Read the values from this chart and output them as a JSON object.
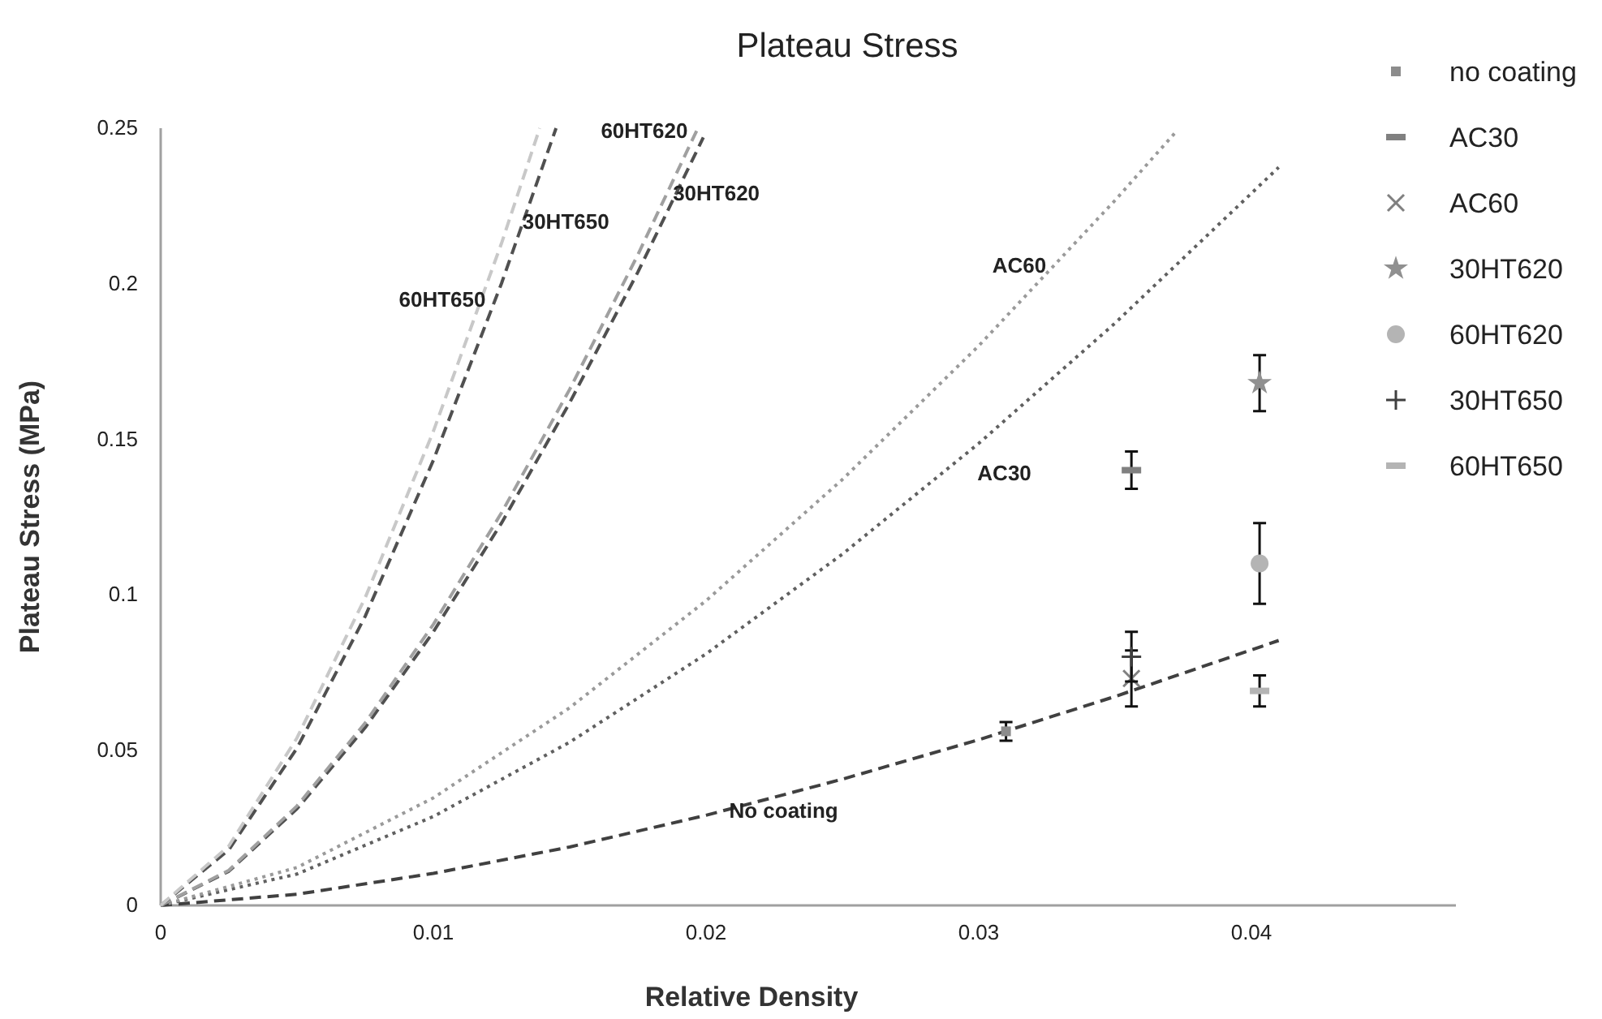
{
  "chart_data": {
    "type": "line",
    "title": "Plateau Stress",
    "xlabel": "Relative Density",
    "ylabel": "Plateau Stress (MPa)",
    "xlim": [
      0,
      0.0475
    ],
    "xticks": [
      0,
      0.01,
      0.02,
      0.03,
      0.04
    ],
    "ylim": [
      0,
      0.25
    ],
    "yticks": [
      0,
      0.05,
      0.1,
      0.15,
      0.2,
      0.25
    ],
    "grid": false,
    "legend": "top right",
    "series": [
      {
        "type": "line",
        "name": "No coating",
        "line_style": "dashed",
        "color": "#404040",
        "x": [
          0,
          0.005,
          0.01,
          0.015,
          0.02,
          0.025,
          0.03,
          0.035,
          0.041
        ],
        "values": [
          0,
          0.0036,
          0.0103,
          0.0188,
          0.029,
          0.0406,
          0.0533,
          0.0672,
          0.0852
        ]
      },
      {
        "type": "line",
        "name": "AC30",
        "line_style": "dotted",
        "color": "#606060",
        "x": [
          0,
          0.005,
          0.01,
          0.015,
          0.02,
          0.025,
          0.03,
          0.035,
          0.041
        ],
        "values": [
          0,
          0.0101,
          0.0286,
          0.0525,
          0.0809,
          0.113,
          0.1486,
          0.1873,
          0.2374
        ]
      },
      {
        "type": "line",
        "name": "AC60",
        "line_style": "dotted",
        "color": "#9a9a9a",
        "x": [
          0,
          0.005,
          0.01,
          0.015,
          0.02,
          0.025,
          0.03,
          0.035,
          0.0372
        ],
        "values": [
          0,
          0.0122,
          0.0346,
          0.0636,
          0.098,
          0.137,
          0.18,
          0.2268,
          0.2485
        ]
      },
      {
        "type": "line",
        "name": "30HT620",
        "line_style": "dashed",
        "color": "#505050",
        "x": [
          0,
          0.0025,
          0.005,
          0.0075,
          0.01,
          0.0125,
          0.015,
          0.0175,
          0.0199
        ],
        "values": [
          0,
          0.011,
          0.0311,
          0.0572,
          0.088,
          0.123,
          0.1617,
          0.2037,
          0.247
        ]
      },
      {
        "type": "line",
        "name": "60HT620",
        "line_style": "dashed",
        "color": "#a0a0a0",
        "x": [
          0,
          0.0025,
          0.005,
          0.0075,
          0.01,
          0.0125,
          0.015,
          0.0175,
          0.0197
        ],
        "values": [
          0,
          0.0113,
          0.032,
          0.0587,
          0.0904,
          0.1263,
          0.166,
          0.2093,
          0.25
        ]
      },
      {
        "type": "line",
        "name": "30HT650",
        "line_style": "dashed",
        "color": "#505050",
        "x": [
          0,
          0.0025,
          0.005,
          0.0075,
          0.01,
          0.0125,
          0.0145
        ],
        "values": [
          0,
          0.0179,
          0.0506,
          0.093,
          0.1432,
          0.2001,
          0.25
        ]
      },
      {
        "type": "line",
        "name": "60HT650",
        "line_style": "dashed",
        "color": "#c8c8c8",
        "x": [
          0,
          0.0025,
          0.005,
          0.0075,
          0.01,
          0.0125,
          0.0139
        ],
        "values": [
          0,
          0.0191,
          0.0539,
          0.099,
          0.1525,
          0.213,
          0.25
        ]
      },
      {
        "type": "scatter",
        "name": "no coating",
        "marker": "square",
        "color": "#8c8c8c",
        "x": [
          0.031
        ],
        "values": [
          0.056
        ],
        "errors": [
          0.003
        ]
      },
      {
        "type": "scatter",
        "name": "AC30",
        "color": "#808080",
        "x": [
          0.0356
        ],
        "values": [
          0.14
        ],
        "errors": [
          0.006
        ]
      },
      {
        "type": "scatter",
        "name": "AC60",
        "marker": "cross",
        "color": "#808080",
        "x": [
          0.0356
        ],
        "values": [
          0.073
        ],
        "errors": [
          0.009
        ]
      },
      {
        "type": "scatter",
        "name": "30HT620",
        "marker": "star",
        "color": "#909090",
        "x": [
          0.0403
        ],
        "values": [
          0.168
        ],
        "errors": [
          0.009
        ]
      },
      {
        "type": "scatter",
        "name": "60HT620",
        "marker": "circle",
        "color": "#b4b4b4",
        "x": [
          0.0403
        ],
        "values": [
          0.11
        ],
        "errors": [
          0.013
        ]
      },
      {
        "type": "scatter",
        "name": "30HT650",
        "marker": "plus",
        "color": "#404040",
        "x": [
          0.0356
        ],
        "values": [
          0.08
        ],
        "errors": [
          0.008
        ]
      },
      {
        "type": "scatter",
        "name": "60HT650",
        "color": "#b4b4b4",
        "x": [
          0.0403
        ],
        "values": [
          0.069
        ],
        "errors": [
          0.005
        ]
      }
    ]
  }
}
